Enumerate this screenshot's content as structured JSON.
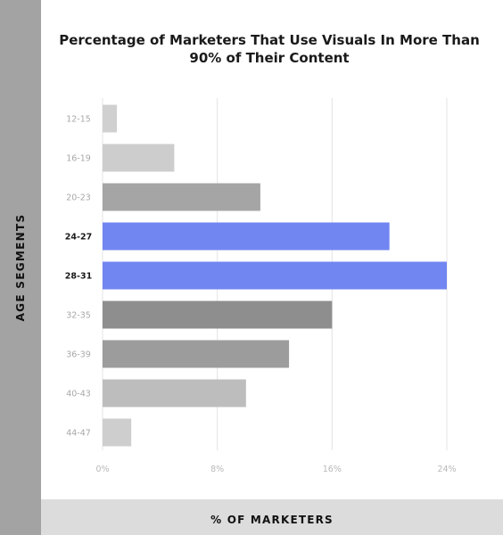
{
  "chart_data": {
    "type": "bar",
    "orientation": "horizontal",
    "title": "Percentage of Marketers That Use Visuals In More Than 90% of Their Content",
    "xlabel": "% OF MARKETERS",
    "ylabel": "AGE SEGMENTS",
    "categories": [
      "12-15",
      "16-19",
      "20-23",
      "24-27",
      "28-31",
      "32-35",
      "36-39",
      "40-43",
      "44-47"
    ],
    "values": [
      1,
      5,
      11,
      20,
      24,
      16,
      13,
      10,
      2
    ],
    "xlim": [
      0,
      24
    ],
    "xticks": [
      "0%",
      "8%",
      "16%",
      "24%"
    ],
    "grid": true,
    "highlighted": [
      "24-27",
      "28-31"
    ],
    "colors": {
      "highlight": "#7186f1",
      "bar_light": "#cdcdcd",
      "bar_mid": "#a5a5a5",
      "bar_dark": "#8e8e8e"
    },
    "bar_colors": [
      "#d0d0d0",
      "#cdcdcd",
      "#a5a5a5",
      "#7186f1",
      "#7186f1",
      "#8e8e8e",
      "#9c9c9c",
      "#bdbdbd",
      "#cecece"
    ]
  }
}
